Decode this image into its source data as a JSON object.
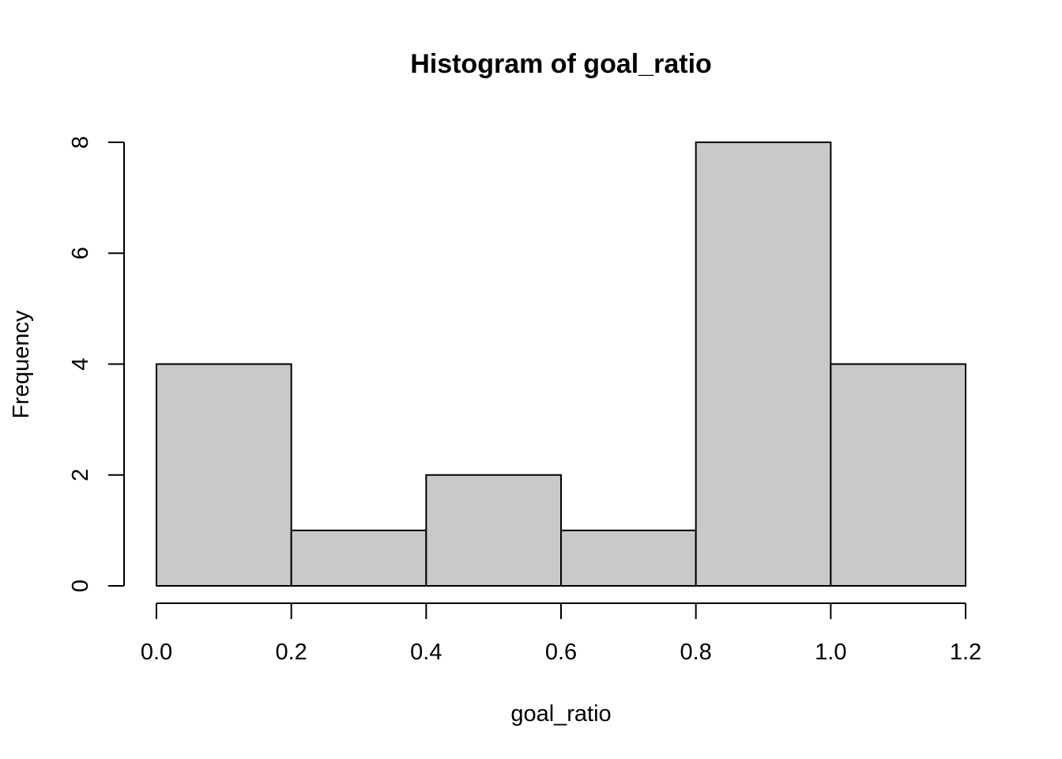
{
  "chart_data": {
    "type": "bar",
    "title": "Histogram of goal_ratio",
    "xlabel": "goal_ratio",
    "ylabel": "Frequency",
    "bins": [
      {
        "from": 0.0,
        "to": 0.2,
        "count": 4
      },
      {
        "from": 0.2,
        "to": 0.4,
        "count": 1
      },
      {
        "from": 0.4,
        "to": 0.6,
        "count": 2
      },
      {
        "from": 0.6,
        "to": 0.8,
        "count": 1
      },
      {
        "from": 0.8,
        "to": 1.0,
        "count": 8
      },
      {
        "from": 1.0,
        "to": 1.2,
        "count": 4
      }
    ],
    "x_ticks": [
      "0.0",
      "0.2",
      "0.4",
      "0.6",
      "0.8",
      "1.0",
      "1.2"
    ],
    "y_ticks": [
      "0",
      "2",
      "4",
      "6",
      "8"
    ],
    "xlim": [
      0.0,
      1.2
    ],
    "ylim": [
      0,
      8
    ],
    "grid": false,
    "colors": {
      "bar_fill": "#c9c9c9",
      "bar_stroke": "#000000"
    }
  }
}
